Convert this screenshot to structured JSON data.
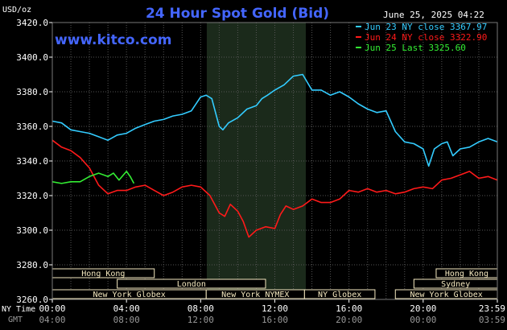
{
  "chart_data": {
    "type": "line",
    "title": "24 Hour Spot Gold (Bid)",
    "site": "www.kitco.com",
    "date_stamp": "June 25, 2025 04:22",
    "y_unit": "USD/oz",
    "ylim": [
      3260,
      3420
    ],
    "y_ticks": [
      "3420.0",
      "3400.0",
      "3380.0",
      "3360.0",
      "3340.0",
      "3320.0",
      "3300.0",
      "3280.0",
      "3260.0"
    ],
    "x_range_hours": [
      0,
      24
    ],
    "x_tick_hours": [
      0,
      4,
      8,
      12,
      16,
      20,
      24
    ],
    "x_labels_ny": [
      "00:00",
      "04:00",
      "08:00",
      "12:00",
      "16:00",
      "20:00",
      "23:59"
    ],
    "x_labels_gmt": [
      "04:00",
      "08:00",
      "12:00",
      "16:00",
      "20:00",
      "00:00",
      "03:59"
    ],
    "x_axis_label_ny": "NY Time",
    "x_axis_label_gmt": "GMT",
    "grid": true,
    "legend_position": "top-right",
    "highlight_hours": [
      8.33,
      13.67
    ],
    "colors": {
      "jun23": "#33ccff",
      "jun24": "#ff1a1a",
      "jun25": "#33ee33",
      "grid": "#555555",
      "axis_text": "#ffffff",
      "title": "#4466ff",
      "highlight": "#1b2a1b",
      "session_box": "#f5e9c0"
    },
    "series": [
      {
        "name": "Jun 23 NY close 3367.97",
        "color_key": "jun23",
        "points": [
          [
            0,
            3363
          ],
          [
            0.5,
            3362
          ],
          [
            1,
            3358
          ],
          [
            1.5,
            3357
          ],
          [
            2,
            3356
          ],
          [
            2.5,
            3354
          ],
          [
            3,
            3352
          ],
          [
            3.5,
            3355
          ],
          [
            4,
            3356
          ],
          [
            4.5,
            3359
          ],
          [
            5,
            3361
          ],
          [
            5.5,
            3363
          ],
          [
            6,
            3364
          ],
          [
            6.5,
            3366
          ],
          [
            7,
            3367
          ],
          [
            7.5,
            3369
          ],
          [
            8,
            3377
          ],
          [
            8.3,
            3378
          ],
          [
            8.6,
            3376
          ],
          [
            9,
            3360
          ],
          [
            9.2,
            3358
          ],
          [
            9.5,
            3362
          ],
          [
            10,
            3365
          ],
          [
            10.5,
            3370
          ],
          [
            11,
            3372
          ],
          [
            11.3,
            3376
          ],
          [
            11.6,
            3378
          ],
          [
            12,
            3381
          ],
          [
            12.5,
            3384
          ],
          [
            13,
            3389
          ],
          [
            13.5,
            3390
          ],
          [
            14,
            3381
          ],
          [
            14.5,
            3381
          ],
          [
            15,
            3378
          ],
          [
            15.5,
            3380
          ],
          [
            16,
            3377
          ],
          [
            16.5,
            3373
          ],
          [
            17,
            3370
          ],
          [
            17.5,
            3368
          ],
          [
            18,
            3369
          ],
          [
            18.5,
            3357
          ],
          [
            19,
            3351
          ],
          [
            19.5,
            3350
          ],
          [
            20,
            3347
          ],
          [
            20.3,
            3337
          ],
          [
            20.6,
            3347
          ],
          [
            21,
            3350
          ],
          [
            21.3,
            3351
          ],
          [
            21.6,
            3343
          ],
          [
            22,
            3347
          ],
          [
            22.5,
            3348
          ],
          [
            23,
            3351
          ],
          [
            23.5,
            3353
          ],
          [
            24,
            3351
          ]
        ]
      },
      {
        "name": "Jun 24 NY close 3322.90",
        "color_key": "jun24",
        "points": [
          [
            0,
            3352
          ],
          [
            0.5,
            3348
          ],
          [
            1,
            3346
          ],
          [
            1.5,
            3342
          ],
          [
            2,
            3336
          ],
          [
            2.5,
            3326
          ],
          [
            3,
            3321
          ],
          [
            3.5,
            3323
          ],
          [
            4,
            3323
          ],
          [
            4.5,
            3325
          ],
          [
            5,
            3326
          ],
          [
            5.5,
            3323
          ],
          [
            6,
            3320
          ],
          [
            6.5,
            3322
          ],
          [
            7,
            3325
          ],
          [
            7.5,
            3326
          ],
          [
            8,
            3325
          ],
          [
            8.5,
            3320
          ],
          [
            9,
            3310
          ],
          [
            9.3,
            3308
          ],
          [
            9.6,
            3315
          ],
          [
            10,
            3311
          ],
          [
            10.3,
            3305
          ],
          [
            10.6,
            3296
          ],
          [
            11,
            3300
          ],
          [
            11.5,
            3302
          ],
          [
            12,
            3301
          ],
          [
            12.3,
            3309
          ],
          [
            12.6,
            3314
          ],
          [
            13,
            3312
          ],
          [
            13.5,
            3314
          ],
          [
            14,
            3318
          ],
          [
            14.5,
            3316
          ],
          [
            15,
            3316
          ],
          [
            15.5,
            3318
          ],
          [
            16,
            3323
          ],
          [
            16.5,
            3322
          ],
          [
            17,
            3324
          ],
          [
            17.5,
            3322
          ],
          [
            18,
            3323
          ],
          [
            18.5,
            3321
          ],
          [
            19,
            3322
          ],
          [
            19.5,
            3324
          ],
          [
            20,
            3325
          ],
          [
            20.5,
            3324
          ],
          [
            21,
            3329
          ],
          [
            21.5,
            3330
          ],
          [
            22,
            3332
          ],
          [
            22.5,
            3334
          ],
          [
            23,
            3330
          ],
          [
            23.5,
            3331
          ],
          [
            24,
            3329
          ]
        ]
      },
      {
        "name": "Jun 25 Last 3325.60",
        "color_key": "jun25",
        "points": [
          [
            0,
            3328
          ],
          [
            0.5,
            3327
          ],
          [
            1,
            3328
          ],
          [
            1.5,
            3328
          ],
          [
            2,
            3331
          ],
          [
            2.5,
            3333
          ],
          [
            3,
            3331
          ],
          [
            3.3,
            3333
          ],
          [
            3.6,
            3329
          ],
          [
            4,
            3334
          ],
          [
            4.2,
            3331
          ],
          [
            4.4,
            3327
          ]
        ]
      }
    ],
    "sessions": [
      {
        "label": "Hong Kong",
        "start_hour": 0,
        "end_hour": 5.5,
        "row": 0
      },
      {
        "label": "London",
        "start_hour": 3.5,
        "end_hour": 11.5,
        "row": 1
      },
      {
        "label": "New York Globex",
        "start_hour": 0,
        "end_hour": 8.3,
        "row": 2
      },
      {
        "label": "New York NYMEX",
        "start_hour": 8.3,
        "end_hour": 13.6,
        "row": 2
      },
      {
        "label": "NY Globex",
        "start_hour": 13.6,
        "end_hour": 17.4,
        "row": 2
      },
      {
        "label": "Hong Kong",
        "start_hour": 20.7,
        "end_hour": 24,
        "row": 0
      },
      {
        "label": "Sydney",
        "start_hour": 19.5,
        "end_hour": 24,
        "row": 1
      },
      {
        "label": "New York Globex",
        "start_hour": 18.5,
        "end_hour": 24,
        "row": 2
      }
    ]
  }
}
